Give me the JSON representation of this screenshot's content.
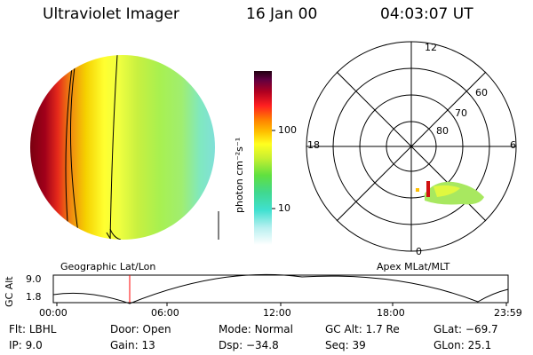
{
  "header": {
    "title": "Ultraviolet Imager",
    "date": "16 Jan 00",
    "time": "04:03:07 UT"
  },
  "colorbar": {
    "unit_label": "photon cm⁻²s⁻¹",
    "tick_100": "100",
    "tick_10": "10",
    "scale": "log"
  },
  "polar": {
    "mlt_labels": {
      "top": "12",
      "left": "18",
      "right": "6",
      "bottom": "0"
    },
    "lat_labels": {
      "l60": "60",
      "l70": "70",
      "l80": "80"
    }
  },
  "projection": {
    "left": "Geographic Lat/Lon",
    "right": "Apex MLat/MLT"
  },
  "timeline": {
    "ylabel": "GC Alt",
    "y_max": "9.0",
    "y_min": "1.8",
    "x_ticks": [
      "00:00",
      "06:00",
      "12:00",
      "18:00",
      "23:59"
    ],
    "marker_time": "04:03",
    "marker_color": "#ff0000"
  },
  "info": {
    "flt": {
      "label": "Flt:",
      "value": "LBHL"
    },
    "ip": {
      "label": "IP:",
      "value": "9.0"
    },
    "door": {
      "label": "Door:",
      "value": "Open"
    },
    "gain": {
      "label": "Gain:",
      "value": "13"
    },
    "mode": {
      "label": "Mode:",
      "value": "Normal"
    },
    "dsp": {
      "label": "Dsp:",
      "value": "−34.8"
    },
    "gcalt": {
      "label": "GC Alt:",
      "value": "1.7 Re"
    },
    "seq": {
      "label": "Seq:",
      "value": "39"
    },
    "glat": {
      "label": "GLat:",
      "value": "−69.7"
    },
    "glon": {
      "label": "GLon:",
      "value": "25.1"
    }
  }
}
